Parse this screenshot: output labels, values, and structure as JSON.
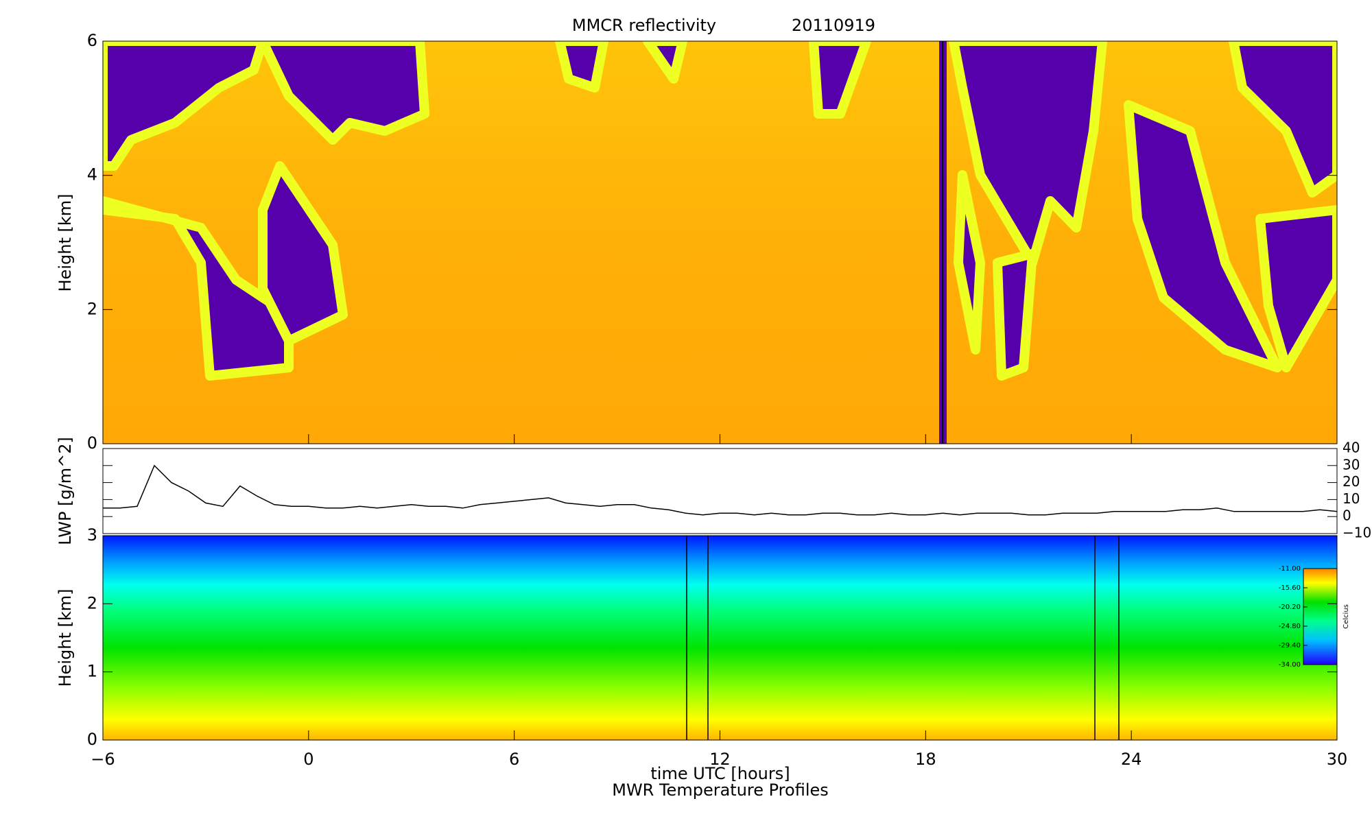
{
  "chart_data": [
    {
      "type": "heatmap",
      "title": "MMCR reflectivity",
      "subtitle": "20110919",
      "ylabel": "Height [km]",
      "xlim": [
        -6,
        30
      ],
      "ylim": [
        0,
        6
      ],
      "yticks": [
        0,
        2,
        4,
        6
      ]
    },
    {
      "type": "line",
      "ylabel": "LWP [g/m^2]",
      "color": "#000000",
      "xlim": [
        -6,
        30
      ],
      "ylim": [
        -10,
        40
      ],
      "yticks": [
        {
          "value": -10,
          "label": "−10"
        },
        0,
        10,
        20,
        30,
        40
      ],
      "x": [
        -6,
        -5.5,
        -5,
        -4.5,
        -4,
        -3.5,
        -3,
        -2.5,
        -2,
        -1.5,
        -1,
        -0.5,
        0,
        0.5,
        1,
        1.5,
        2,
        2.5,
        3,
        3.5,
        4,
        4.5,
        5,
        5.5,
        6,
        6.5,
        7,
        7.5,
        8,
        8.5,
        9,
        9.5,
        10,
        10.5,
        11,
        11.5,
        12,
        12.5,
        13,
        13.5,
        14,
        14.5,
        15,
        15.5,
        16,
        16.5,
        17,
        17.5,
        18,
        18.5,
        19,
        19.5,
        20,
        20.5,
        21,
        21.5,
        22,
        22.5,
        23,
        23.5,
        24,
        24.5,
        25,
        25.5,
        26,
        26.5,
        27,
        27.5,
        28,
        28.5,
        29,
        29.5,
        30
      ],
      "values": [
        5,
        5,
        6,
        30,
        20,
        15,
        8,
        6,
        18,
        12,
        7,
        6,
        6,
        5,
        5,
        6,
        5,
        6,
        7,
        6,
        6,
        5,
        7,
        8,
        9,
        10,
        11,
        8,
        7,
        6,
        7,
        7,
        5,
        4,
        2,
        1,
        2,
        2,
        1,
        2,
        1,
        1,
        2,
        2,
        1,
        1,
        2,
        1,
        1,
        2,
        1,
        2,
        2,
        2,
        1,
        1,
        2,
        2,
        2,
        3,
        3,
        3,
        3,
        4,
        4,
        5,
        3,
        3,
        3,
        3,
        3,
        4,
        3
      ]
    },
    {
      "type": "contour",
      "title": "MWR Temperature Profiles",
      "xlabel": "time UTC [hours]",
      "ylabel": "Height [km]",
      "xlim": [
        -6,
        30
      ],
      "xticks": [
        {
          "value": -6,
          "label": "−6"
        },
        0,
        6,
        12,
        18,
        24,
        30
      ],
      "ylim": [
        0,
        3
      ],
      "yticks": [
        0,
        1,
        2,
        3
      ],
      "colorbar": {
        "label": "Celcius",
        "lim": [
          -34,
          -11
        ],
        "ticks": [
          {
            "value": -11,
            "label": "-11.00"
          },
          {
            "value": -15.6,
            "label": "-15.60"
          },
          {
            "value": -20.2,
            "label": "-20.20"
          },
          {
            "value": -24.8,
            "label": "-24.80"
          },
          {
            "value": -29.4,
            "label": "-29.40"
          },
          {
            "value": -34,
            "label": "-34.00"
          }
        ]
      }
    }
  ]
}
